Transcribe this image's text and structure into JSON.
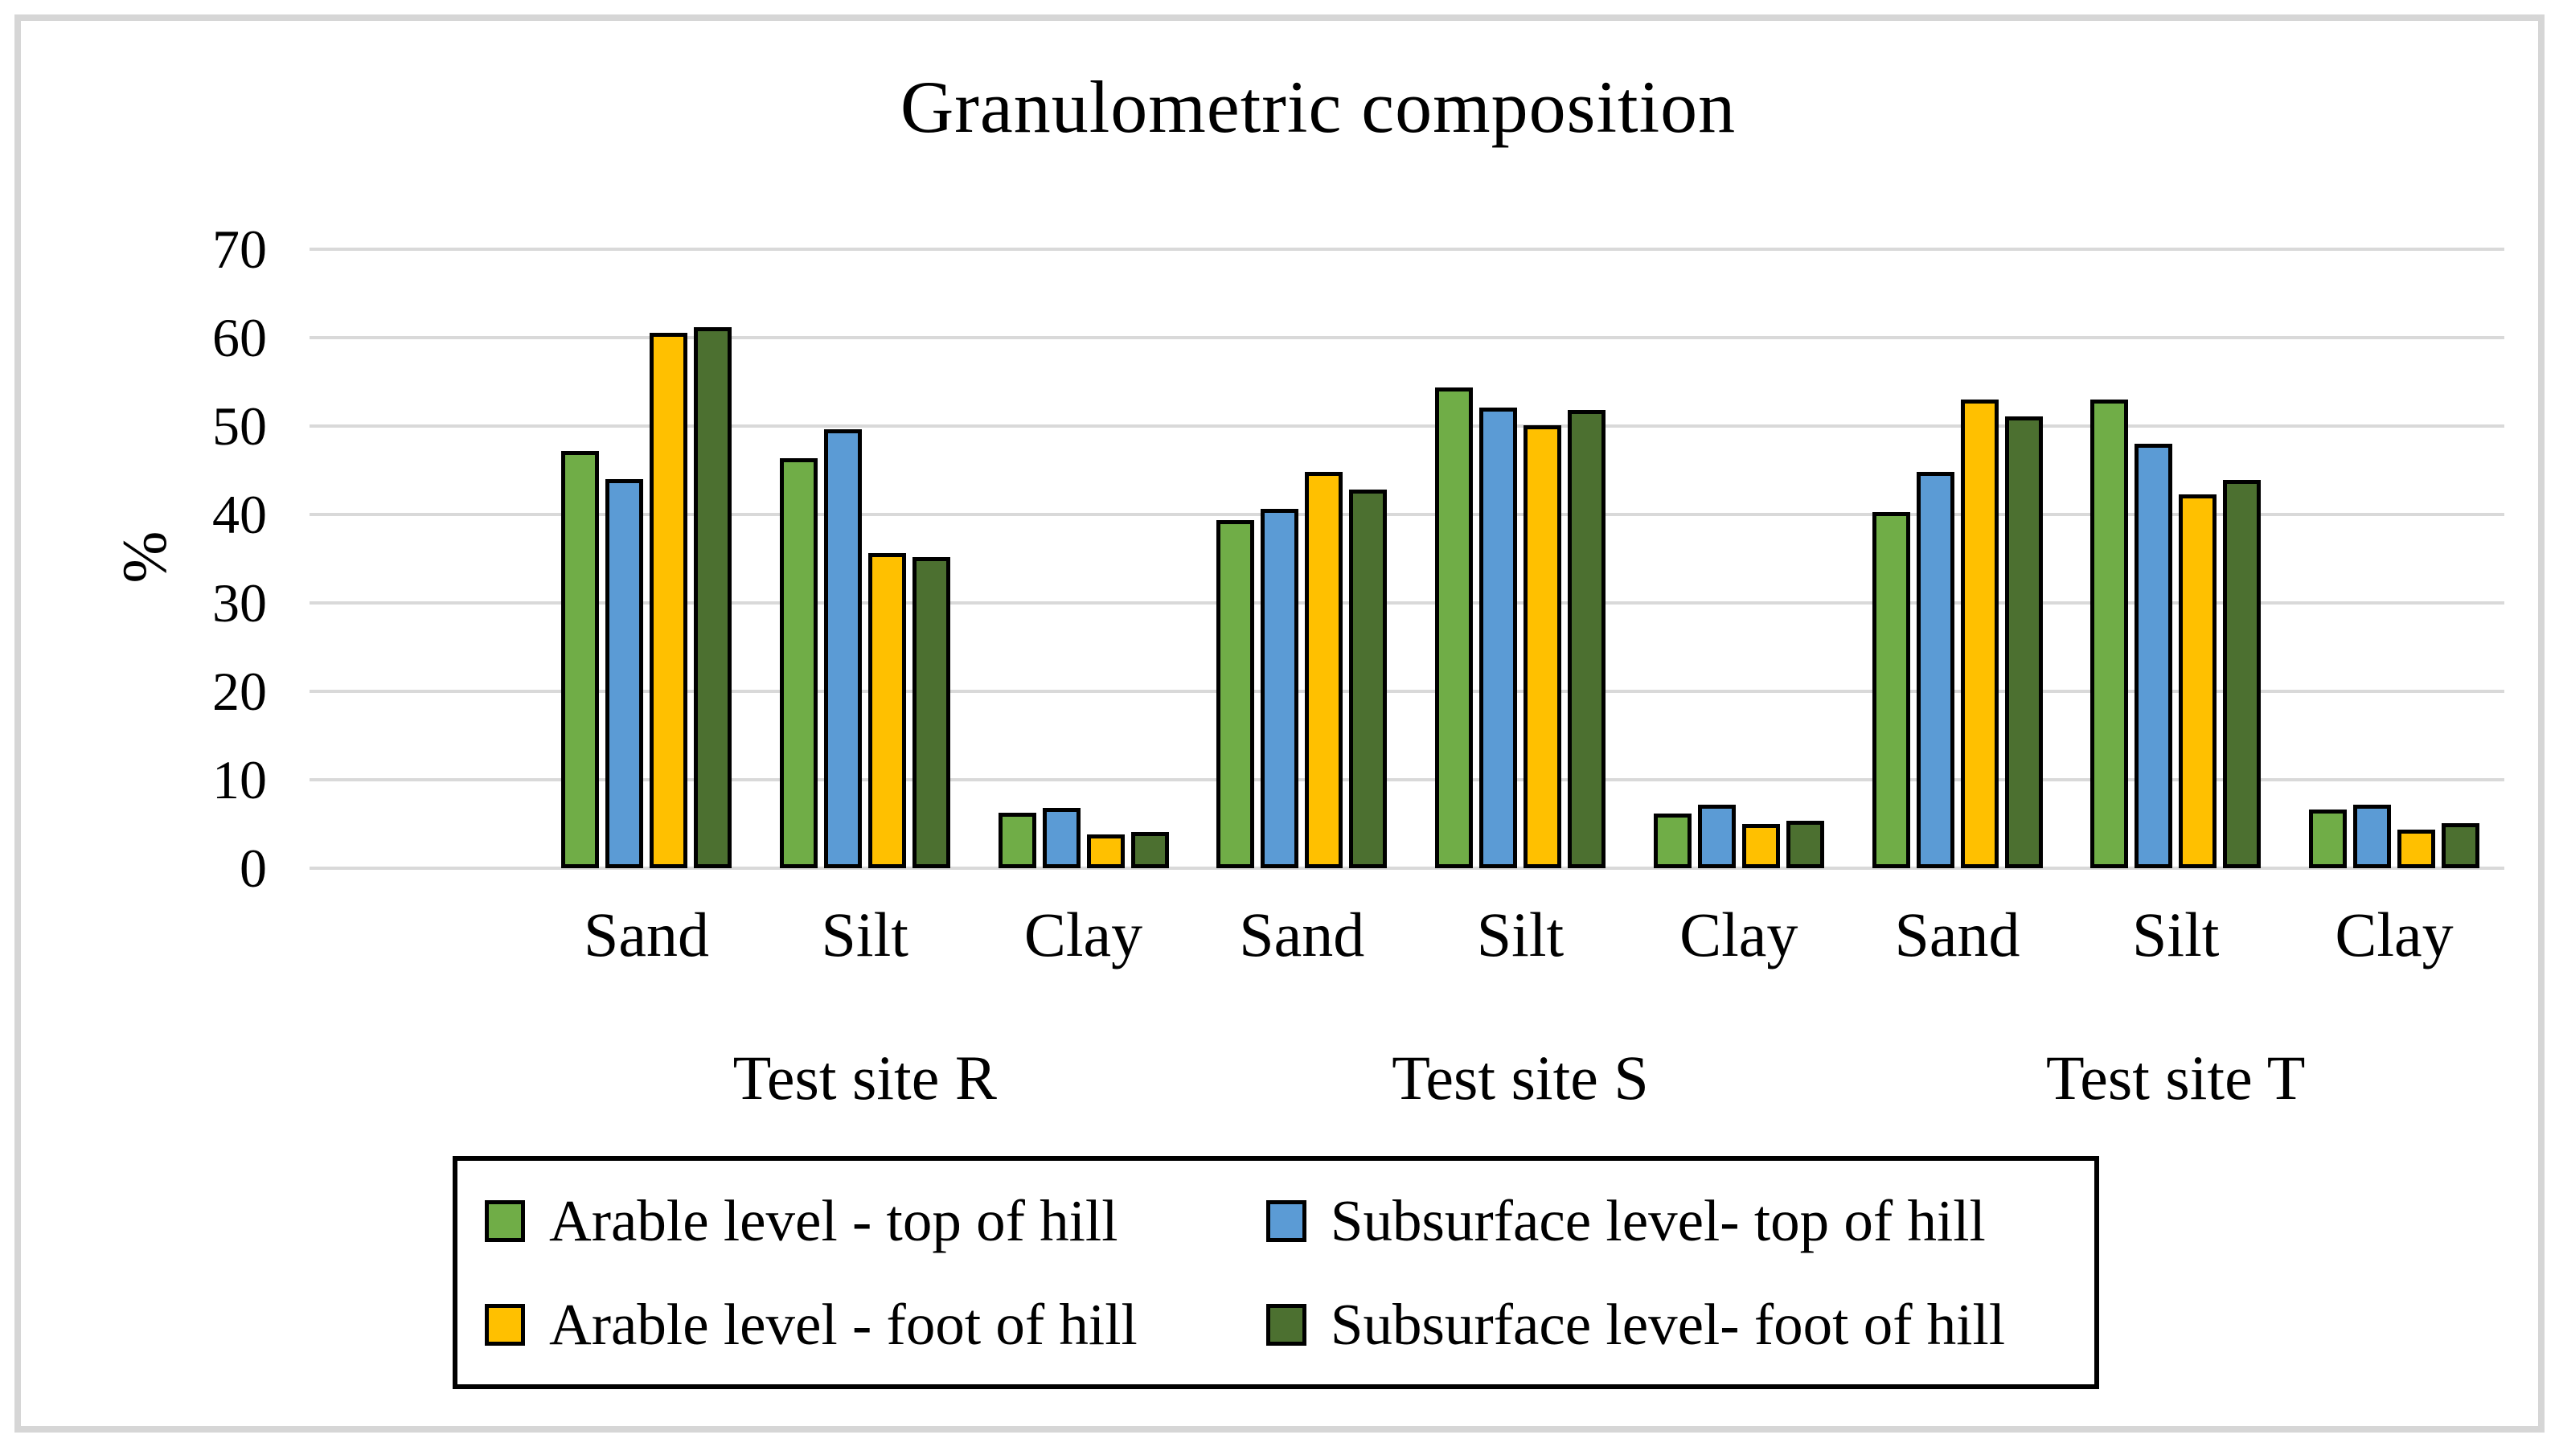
{
  "chart_data": {
    "type": "bar",
    "title": "Granulometric composition",
    "ylabel": "%",
    "ylim": [
      0,
      70
    ],
    "yticks": [
      0,
      10,
      20,
      30,
      40,
      50,
      60,
      70
    ],
    "grid": true,
    "legend_position": "bottom-box",
    "categories": [
      "Sand",
      "Silt",
      "Clay",
      "Sand",
      "Silt",
      "Clay",
      "Sand",
      "Silt",
      "Clay"
    ],
    "site_labels": [
      "Test site R",
      "Test site S",
      "Test site T"
    ],
    "series": [
      {
        "name": "Arable level - top of hill",
        "color": "#70AD47",
        "values": [
          47.2,
          46.4,
          6.3,
          39.4,
          54.4,
          6.2,
          40.3,
          53.0,
          6.6
        ]
      },
      {
        "name": "Subsurface level- top of hill",
        "color": "#5B9BD5",
        "values": [
          44.0,
          49.6,
          6.8,
          40.6,
          52.1,
          7.2,
          44.8,
          48.0,
          7.2
        ]
      },
      {
        "name": "Arable level - foot of hill",
        "color": "#FFC000",
        "values": [
          60.5,
          35.6,
          3.8,
          44.8,
          50.1,
          5.0,
          53.0,
          42.3,
          4.4
        ]
      },
      {
        "name": "Subsurface level- foot of hill",
        "color": "#4C7030",
        "values": [
          61.2,
          35.2,
          4.1,
          42.8,
          51.8,
          5.4,
          51.1,
          43.9,
          5.1
        ]
      }
    ]
  },
  "colors": {
    "bar_border": "#000000",
    "gridline": "#d9d9d9",
    "outer_frame": "#d6d6d6",
    "text": "#000000"
  }
}
